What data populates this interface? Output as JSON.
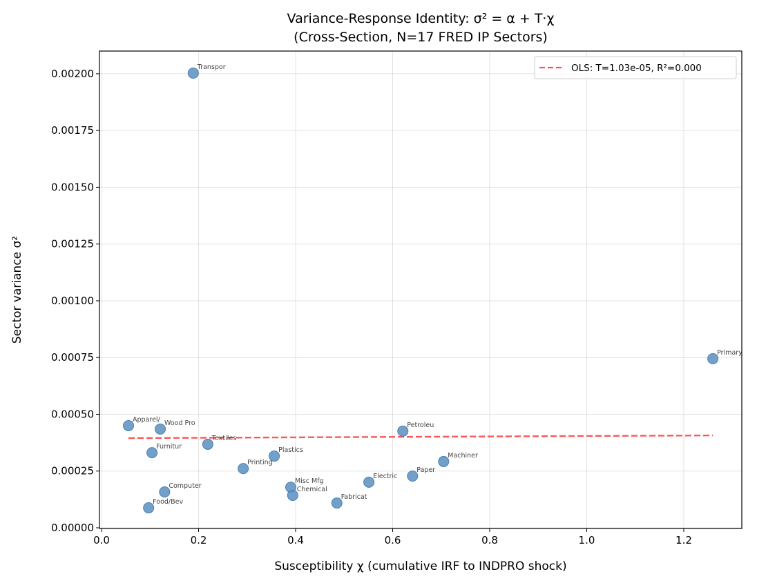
{
  "chart_data": {
    "type": "scatter",
    "title": "Variance-Response Identity: σ² = α + T·χ",
    "subtitle": "(Cross-Section, N=17 FRED IP Sectors)",
    "xlabel": "Susceptibility χ (cumulative IRF to INDPRO shock)",
    "ylabel": "Sector variance σ²",
    "xlim": [
      -0.0043,
      1.3196
    ],
    "ylim": [
      -3e-06,
      0.0021
    ],
    "xticks": [
      0.0,
      0.2,
      0.4,
      0.6,
      0.8,
      1.0,
      1.2
    ],
    "xtick_labels": [
      "0.0",
      "0.2",
      "0.4",
      "0.6",
      "0.8",
      "1.0",
      "1.2"
    ],
    "yticks": [
      0,
      0.00025,
      0.0005,
      0.00075,
      0.001,
      0.00125,
      0.0015,
      0.00175,
      0.002
    ],
    "ytick_labels": [
      "0.00000",
      "0.00025",
      "0.00050",
      "0.00075",
      "0.00100",
      "0.00125",
      "0.00150",
      "0.00175",
      "0.00200"
    ],
    "grid": true,
    "legend_placement": "top-right",
    "points": [
      {
        "label": "Transpor",
        "x": 0.189,
        "y": 0.002003
      },
      {
        "label": "Primary",
        "x": 1.26,
        "y": 0.000745
      },
      {
        "label": "Apparel/",
        "x": 0.0555,
        "y": 0.00045
      },
      {
        "label": "Wood Pro",
        "x": 0.121,
        "y": 0.000435
      },
      {
        "label": "Furnitur",
        "x": 0.104,
        "y": 0.000331
      },
      {
        "label": "Textiles",
        "x": 0.219,
        "y": 0.000368
      },
      {
        "label": "Plastics",
        "x": 0.356,
        "y": 0.000316
      },
      {
        "label": "Printing",
        "x": 0.292,
        "y": 0.000261
      },
      {
        "label": "Computer",
        "x": 0.13,
        "y": 0.000158
      },
      {
        "label": "Food/Bev",
        "x": 0.097,
        "y": 8.8e-05
      },
      {
        "label": "Misc Mfg",
        "x": 0.39,
        "y": 0.000179
      },
      {
        "label": "Chemical",
        "x": 0.394,
        "y": 0.000143
      },
      {
        "label": "Fabricat",
        "x": 0.485,
        "y": 0.000109
      },
      {
        "label": "Electric",
        "x": 0.551,
        "y": 0.000201
      },
      {
        "label": "Petroleu",
        "x": 0.621,
        "y": 0.000426
      },
      {
        "label": "Paper",
        "x": 0.641,
        "y": 0.000228
      },
      {
        "label": "Machiner",
        "x": 0.705,
        "y": 0.000292
      }
    ],
    "fit_line": {
      "name": "OLS: T=1.03e-05, R²=0.000",
      "x": [
        0.0555,
        1.26
      ],
      "y": [
        0.000395,
        0.000407
      ],
      "color": "#ff5555",
      "style": "dashed"
    },
    "point_color": "#5b8fc0"
  }
}
